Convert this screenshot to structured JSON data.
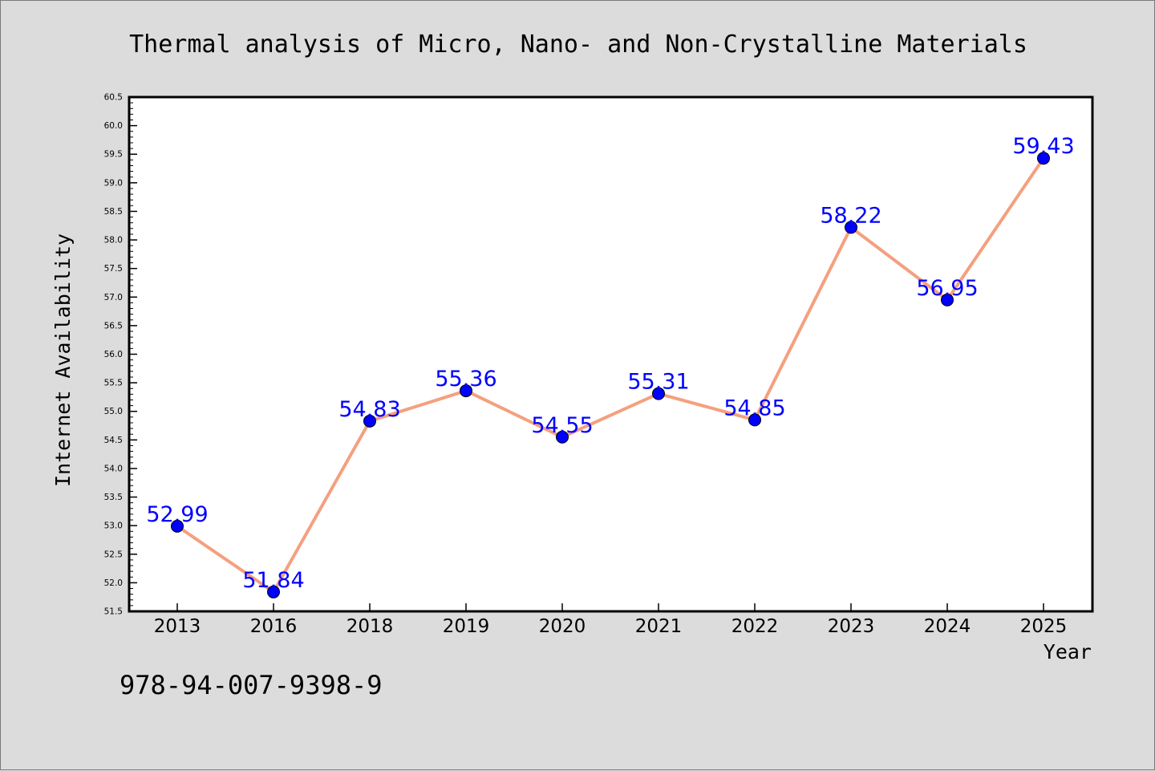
{
  "chart_data": {
    "type": "line",
    "title": "Thermal analysis of Micro, Nano- and Non-Crystalline Materials",
    "xlabel": "Year",
    "ylabel": "Internet Availability",
    "categories": [
      "2013",
      "2016",
      "2018",
      "2019",
      "2020",
      "2021",
      "2022",
      "2023",
      "2024",
      "2025"
    ],
    "series": [
      {
        "values": [
          52.99,
          51.84,
          54.83,
          55.36,
          54.55,
          55.31,
          54.85,
          58.22,
          56.95,
          59.43
        ],
        "data_labels": [
          "52.99",
          "51.84",
          "54.83",
          "55.36",
          "54.55",
          "55.31",
          "54.85",
          "58.22",
          "56.95",
          "59.43"
        ]
      }
    ],
    "ylim": [
      51.5,
      60.5
    ],
    "y_ticks": [
      "51.5",
      "52.0",
      "52.5",
      "53.0",
      "53.5",
      "54.0",
      "54.5",
      "55.0",
      "55.5",
      "56.0",
      "56.5",
      "57.0",
      "57.5",
      "58.0",
      "58.5",
      "59.0",
      "59.5",
      "60.0",
      "60.5"
    ],
    "grid": false,
    "legend": "none",
    "colors": {
      "line": "#f4a07f",
      "marker": "#0000ff",
      "label": "#0000ff",
      "background": "#dcdcdc",
      "plot_background": "#ffffff"
    }
  },
  "footer_text": "978-94-007-9398-9"
}
